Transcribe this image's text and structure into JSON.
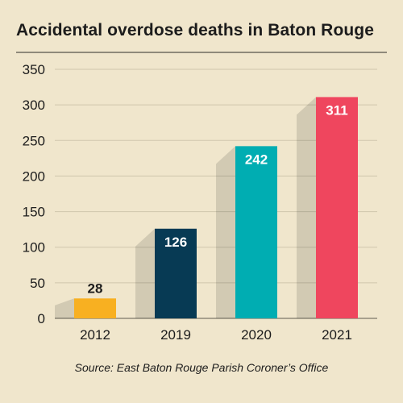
{
  "title": "Accidental overdose deaths in Baton Rouge",
  "source": "Source: East Baton Rouge Parish Coroner’s Office",
  "chart_data": {
    "type": "bar",
    "title": "Accidental overdose deaths in Baton Rouge",
    "categories": [
      "2012",
      "2019",
      "2020",
      "2021"
    ],
    "values": [
      28,
      126,
      242,
      311
    ],
    "value_labels": [
      "28",
      "126",
      "242",
      "311"
    ],
    "colors": [
      "#f8b021",
      "#073a54",
      "#00adb2",
      "#ef465e"
    ],
    "label_colors": [
      "#1c1c1c",
      "#ffffff",
      "#ffffff",
      "#ffffff"
    ],
    "yticks": [
      "0",
      "50",
      "100",
      "150",
      "200",
      "250",
      "300",
      "350"
    ],
    "ylim": [
      0,
      350
    ],
    "grid": true,
    "xlabel": "",
    "ylabel": ""
  }
}
